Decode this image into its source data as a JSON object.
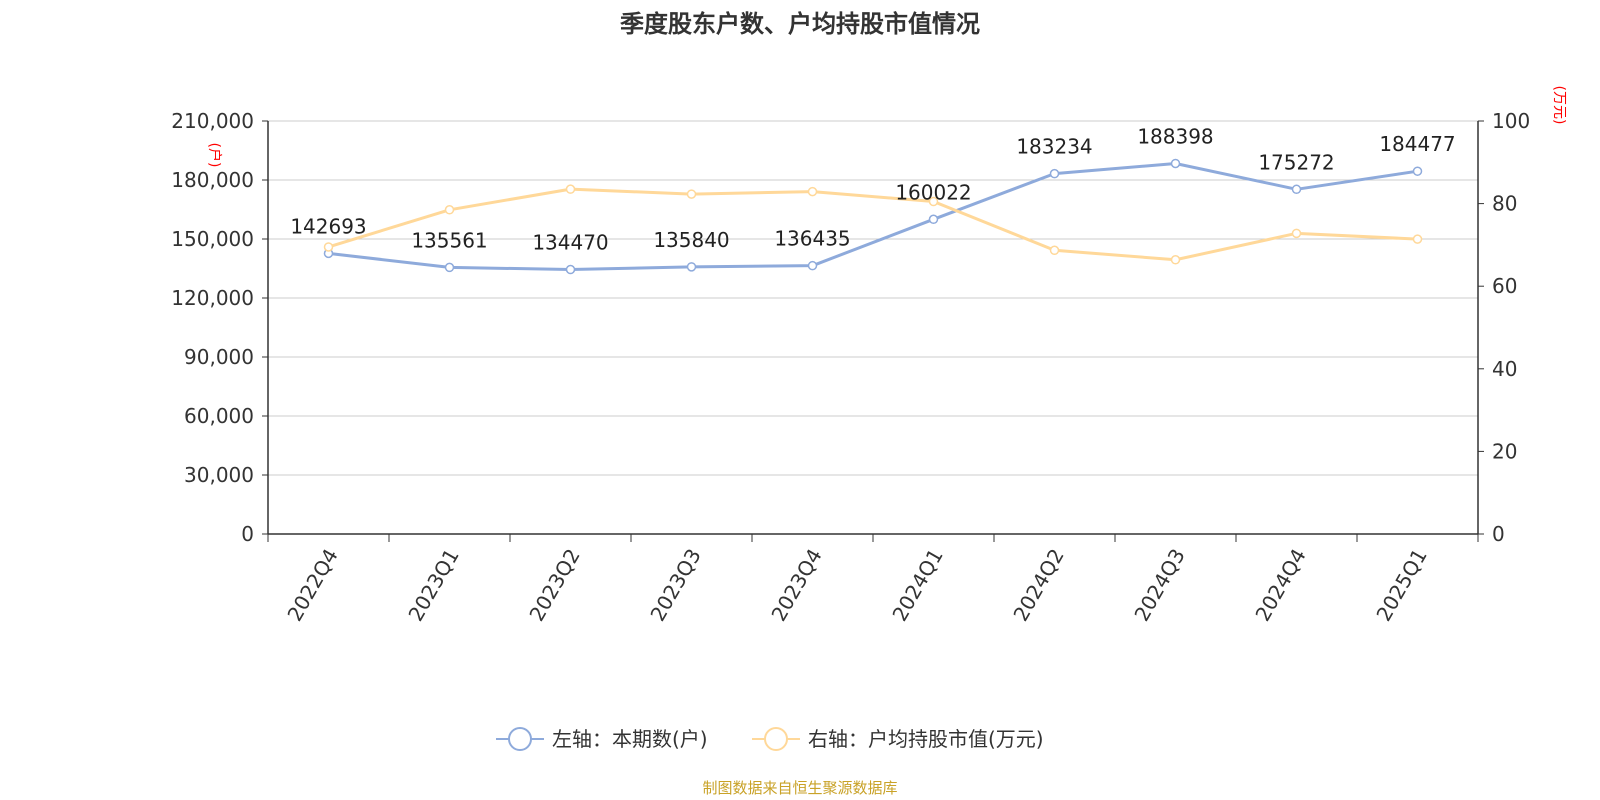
{
  "title": "季度股东户数、户均持股市值情况",
  "source": "制图数据来自恒生聚源数据库",
  "chart_data": {
    "type": "line",
    "categories": [
      "2022Q4",
      "2023Q1",
      "2023Q2",
      "2023Q3",
      "2023Q4",
      "2024Q1",
      "2024Q2",
      "2024Q3",
      "2024Q4",
      "2025Q1"
    ],
    "left_axis": {
      "unit": "(户)",
      "ylim": [
        0,
        210000
      ],
      "ticks": [
        "0",
        "30,000",
        "60,000",
        "90,000",
        "120,000",
        "150,000",
        "180,000",
        "210,000"
      ]
    },
    "right_axis": {
      "unit": "(万元)",
      "ylim": [
        0,
        100
      ],
      "ticks": [
        "0",
        "20",
        "40",
        "60",
        "80",
        "100"
      ]
    },
    "series": [
      {
        "name": "左轴：本期数(户)",
        "axis": "left",
        "color": "#8eaadb",
        "values": [
          142693,
          135561,
          134470,
          135840,
          136435,
          160022,
          183234,
          188398,
          175272,
          184477
        ],
        "labels": [
          "142693",
          "135561",
          "134470",
          "135840",
          "136435",
          "160022",
          "183234",
          "188398",
          "175272",
          "184477"
        ]
      },
      {
        "name": "右轴：户均持股市值(万元)",
        "axis": "right",
        "color": "#ffd899",
        "values": [
          69.5,
          78.5,
          83.5,
          82.3,
          82.9,
          80.5,
          68.7,
          66.4,
          72.8,
          71.4
        ]
      }
    ],
    "grid": true,
    "legend_position": "bottom"
  }
}
